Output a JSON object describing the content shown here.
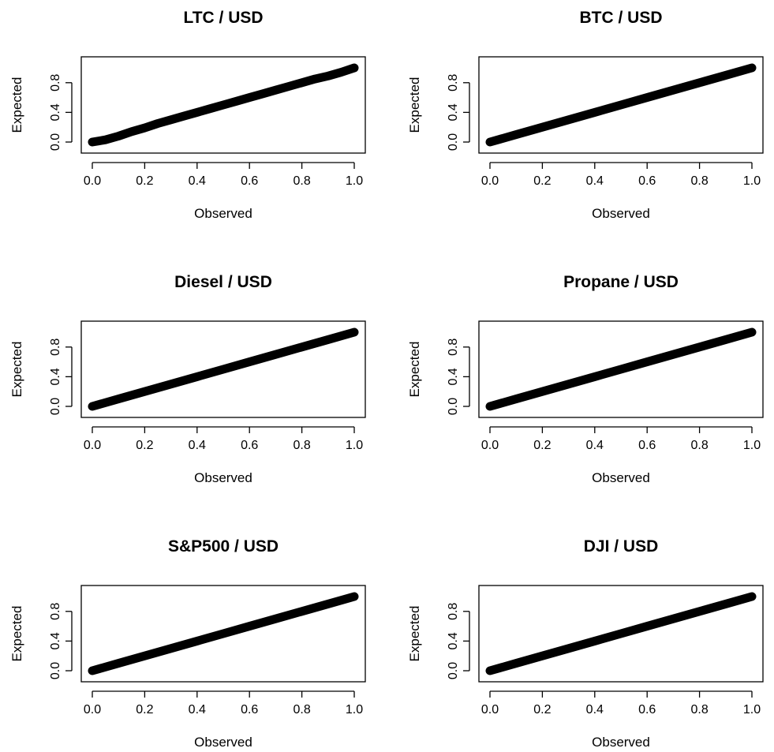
{
  "chart_data": [
    {
      "type": "scatter",
      "title": "LTC / USD",
      "xlabel": "Observed",
      "ylabel": "Expected",
      "xlim": [
        0,
        1
      ],
      "ylim": [
        0,
        1
      ],
      "xticks": [
        "0.0",
        "0.2",
        "0.4",
        "0.6",
        "0.8",
        "1.0"
      ],
      "yticks": [
        "0.0",
        "0.4",
        "0.8"
      ],
      "grid": false,
      "x": [
        0,
        0.05,
        0.1,
        0.15,
        0.2,
        0.25,
        0.3,
        0.35,
        0.4,
        0.45,
        0.5,
        0.55,
        0.6,
        0.65,
        0.7,
        0.75,
        0.8,
        0.85,
        0.9,
        0.95,
        1.0
      ],
      "y": [
        0,
        0.03,
        0.08,
        0.14,
        0.19,
        0.25,
        0.3,
        0.35,
        0.4,
        0.45,
        0.5,
        0.55,
        0.6,
        0.65,
        0.7,
        0.75,
        0.8,
        0.85,
        0.89,
        0.94,
        1.0
      ]
    },
    {
      "type": "scatter",
      "title": "BTC / USD",
      "xlabel": "Observed",
      "ylabel": "Expected",
      "xlim": [
        0,
        1
      ],
      "ylim": [
        0,
        1
      ],
      "xticks": [
        "0.0",
        "0.2",
        "0.4",
        "0.6",
        "0.8",
        "1.0"
      ],
      "yticks": [
        "0.0",
        "0.4",
        "0.8"
      ],
      "grid": false,
      "x": [
        0,
        0.1,
        0.2,
        0.3,
        0.4,
        0.5,
        0.6,
        0.7,
        0.8,
        0.9,
        1.0
      ],
      "y": [
        0,
        0.1,
        0.2,
        0.3,
        0.4,
        0.5,
        0.6,
        0.7,
        0.8,
        0.9,
        1.0
      ]
    },
    {
      "type": "scatter",
      "title": "Diesel / USD",
      "xlabel": "Observed",
      "ylabel": "Expected",
      "xlim": [
        0,
        1
      ],
      "ylim": [
        0,
        1
      ],
      "xticks": [
        "0.0",
        "0.2",
        "0.4",
        "0.6",
        "0.8",
        "1.0"
      ],
      "yticks": [
        "0.0",
        "0.4",
        "0.8"
      ],
      "grid": false,
      "x": [
        0,
        0.1,
        0.2,
        0.3,
        0.4,
        0.5,
        0.6,
        0.7,
        0.8,
        0.9,
        1.0
      ],
      "y": [
        0,
        0.1,
        0.2,
        0.3,
        0.4,
        0.5,
        0.6,
        0.7,
        0.8,
        0.9,
        1.0
      ]
    },
    {
      "type": "scatter",
      "title": "Propane / USD",
      "xlabel": "Observed",
      "ylabel": "Expected",
      "xlim": [
        0,
        1
      ],
      "ylim": [
        0,
        1
      ],
      "xticks": [
        "0.0",
        "0.2",
        "0.4",
        "0.6",
        "0.8",
        "1.0"
      ],
      "yticks": [
        "0.0",
        "0.4",
        "0.8"
      ],
      "grid": false,
      "x": [
        0,
        0.1,
        0.2,
        0.3,
        0.4,
        0.5,
        0.6,
        0.7,
        0.8,
        0.9,
        1.0
      ],
      "y": [
        0,
        0.1,
        0.2,
        0.3,
        0.4,
        0.5,
        0.6,
        0.7,
        0.8,
        0.9,
        1.0
      ]
    },
    {
      "type": "scatter",
      "title": "S&P500 / USD",
      "xlabel": "Observed",
      "ylabel": "Expected",
      "xlim": [
        0,
        1
      ],
      "ylim": [
        0,
        1
      ],
      "xticks": [
        "0.0",
        "0.2",
        "0.4",
        "0.6",
        "0.8",
        "1.0"
      ],
      "yticks": [
        "0.0",
        "0.4",
        "0.8"
      ],
      "grid": false,
      "x": [
        0,
        0.1,
        0.2,
        0.3,
        0.4,
        0.5,
        0.6,
        0.7,
        0.8,
        0.9,
        1.0
      ],
      "y": [
        0,
        0.1,
        0.2,
        0.3,
        0.4,
        0.5,
        0.6,
        0.7,
        0.8,
        0.9,
        1.0
      ]
    },
    {
      "type": "scatter",
      "title": "DJI / USD",
      "xlabel": "Observed",
      "ylabel": "Expected",
      "xlim": [
        0,
        1
      ],
      "ylim": [
        0,
        1
      ],
      "xticks": [
        "0.0",
        "0.2",
        "0.4",
        "0.6",
        "0.8",
        "1.0"
      ],
      "yticks": [
        "0.0",
        "0.4",
        "0.8"
      ],
      "grid": false,
      "x": [
        0,
        0.1,
        0.2,
        0.3,
        0.4,
        0.5,
        0.6,
        0.7,
        0.8,
        0.9,
        1.0
      ],
      "y": [
        0,
        0.1,
        0.2,
        0.3,
        0.4,
        0.5,
        0.6,
        0.7,
        0.8,
        0.9,
        1.0
      ]
    }
  ]
}
